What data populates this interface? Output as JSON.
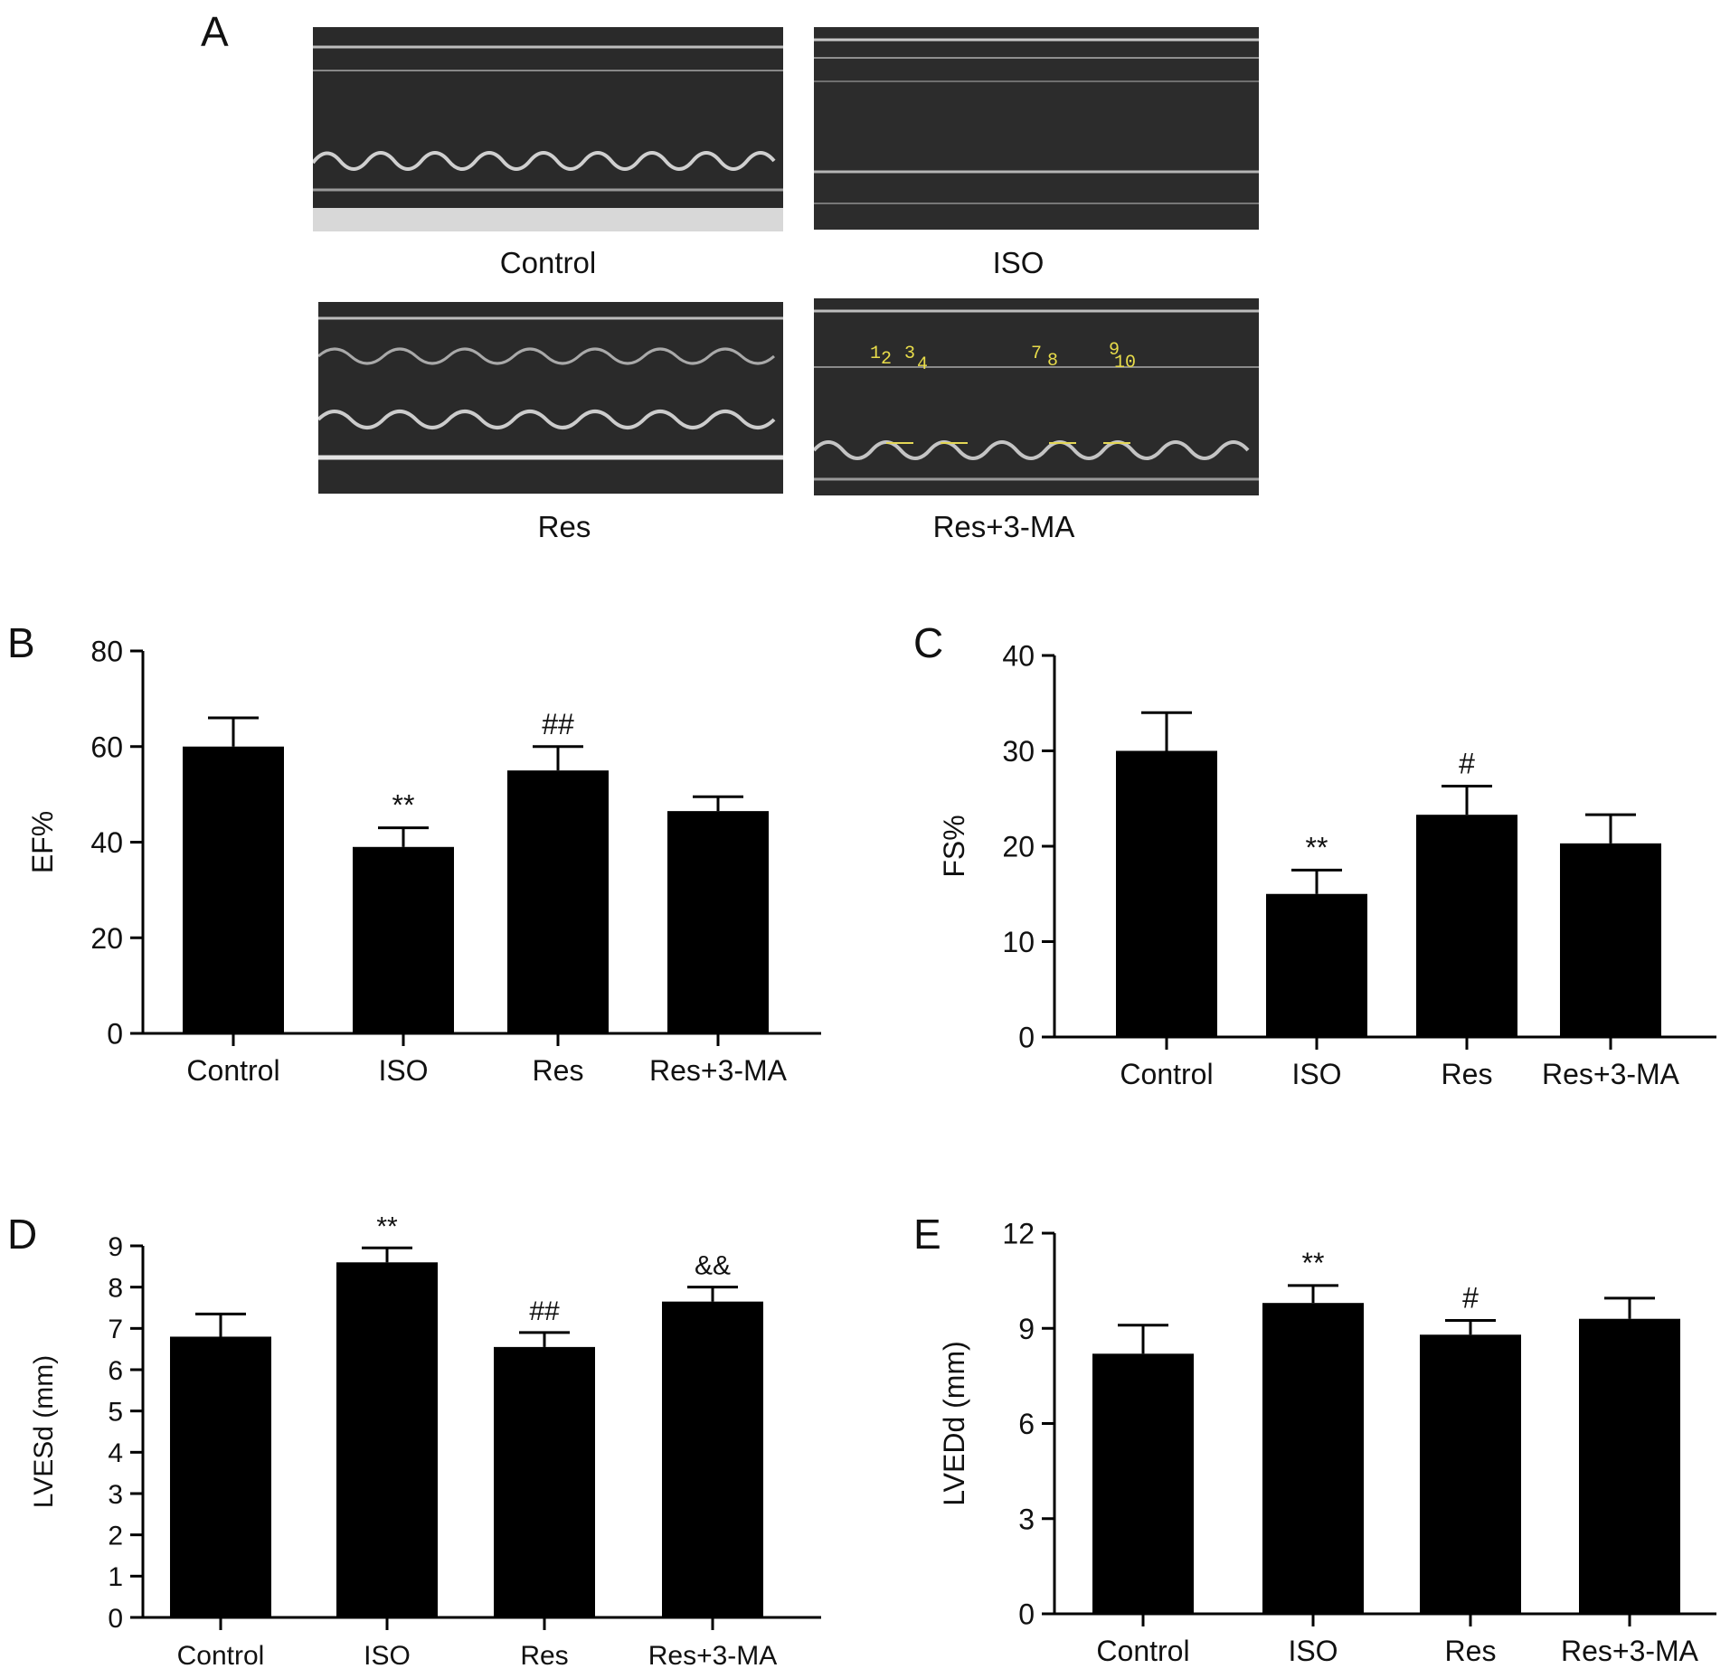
{
  "panel_a": {
    "letter": "A",
    "images": [
      {
        "label": "Control"
      },
      {
        "label": "ISO"
      },
      {
        "label": "Res"
      },
      {
        "label": "Res+3-MA",
        "overlay_marks": [
          "1",
          "2",
          "3",
          "4",
          "7",
          "8",
          "9",
          "10"
        ]
      }
    ]
  },
  "chart_data": [
    {
      "letter": "B",
      "type": "bar",
      "categories": [
        "Control",
        "ISO",
        "Res",
        "Res+3-MA"
      ],
      "values": [
        60,
        39,
        55,
        46.5
      ],
      "errors": [
        6,
        4,
        5,
        3
      ],
      "annotations": [
        "",
        "**",
        "##",
        ""
      ],
      "ylabel": "EF%",
      "ylim": [
        0,
        80
      ],
      "yticks": [
        0,
        20,
        40,
        60,
        80
      ]
    },
    {
      "letter": "C",
      "type": "bar",
      "categories": [
        "Control",
        "ISO",
        "Res",
        "Res+3-MA"
      ],
      "values": [
        30,
        15,
        23.3,
        20.3
      ],
      "errors": [
        4,
        2.5,
        3,
        3
      ],
      "annotations": [
        "",
        "**",
        "#",
        ""
      ],
      "ylabel": "FS%",
      "ylim": [
        0,
        40
      ],
      "yticks": [
        0,
        10,
        20,
        30,
        40
      ]
    },
    {
      "letter": "D",
      "type": "bar",
      "categories": [
        "Control",
        "ISO",
        "Res",
        "Res+3-MA"
      ],
      "values": [
        6.8,
        8.6,
        6.55,
        7.65
      ],
      "errors": [
        0.55,
        0.35,
        0.35,
        0.35
      ],
      "annotations": [
        "",
        "**",
        "##",
        "&&"
      ],
      "ylabel": "LVESd (mm)",
      "ylim": [
        0,
        9
      ],
      "yticks": [
        0,
        1,
        2,
        3,
        4,
        5,
        6,
        7,
        8,
        9
      ]
    },
    {
      "letter": "E",
      "type": "bar",
      "categories": [
        "Control",
        "ISO",
        "Res",
        "Res+3-MA"
      ],
      "values": [
        8.2,
        9.8,
        8.8,
        9.3
      ],
      "errors": [
        0.9,
        0.55,
        0.45,
        0.65
      ],
      "annotations": [
        "",
        "**",
        "#",
        ""
      ],
      "ylabel": "LVEDd (mm)",
      "ylim": [
        0,
        12
      ],
      "yticks": [
        0,
        3,
        6,
        9,
        12
      ]
    }
  ]
}
